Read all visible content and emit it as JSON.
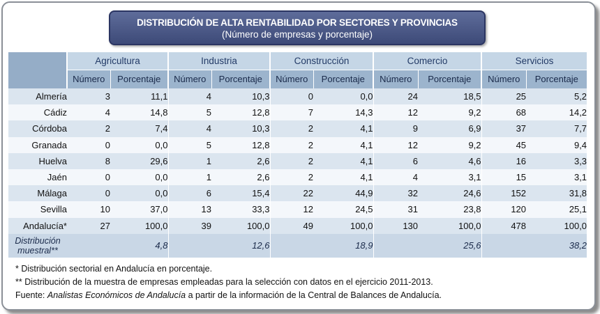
{
  "title": {
    "line1": "DISTRIBUCIÓN DE ALTA RENTABILIDAD POR SECTORES Y PROVINCIAS",
    "line2": "(Número de empresas y porcentaje)"
  },
  "columns": {
    "sectors": [
      "Agricultura",
      "Industria",
      "Construcción",
      "Comercio",
      "Servicios"
    ],
    "numero": "Número",
    "porcentaje": "Porcentaje"
  },
  "rows": [
    {
      "provincia": "Almería",
      "values": [
        "3",
        "11,1",
        "4",
        "10,3",
        "0",
        "0,0",
        "24",
        "18,5",
        "25",
        "5,2"
      ]
    },
    {
      "provincia": "Cádiz",
      "values": [
        "4",
        "14,8",
        "5",
        "12,8",
        "7",
        "14,3",
        "12",
        "9,2",
        "68",
        "14,2"
      ]
    },
    {
      "provincia": "Córdoba",
      "values": [
        "2",
        "7,4",
        "4",
        "10,3",
        "2",
        "4,1",
        "9",
        "6,9",
        "37",
        "7,7"
      ]
    },
    {
      "provincia": "Granada",
      "values": [
        "0",
        "0,0",
        "5",
        "12,8",
        "2",
        "4,1",
        "12",
        "9,2",
        "45",
        "9,4"
      ]
    },
    {
      "provincia": "Huelva",
      "values": [
        "8",
        "29,6",
        "1",
        "2,6",
        "2",
        "4,1",
        "6",
        "4,6",
        "16",
        "3,3"
      ]
    },
    {
      "provincia": "Jaén",
      "values": [
        "0",
        "0,0",
        "1",
        "2,6",
        "2",
        "4,1",
        "4",
        "3,1",
        "15",
        "3,1"
      ]
    },
    {
      "provincia": "Málaga",
      "values": [
        "0",
        "0,0",
        "6",
        "15,4",
        "22",
        "44,9",
        "32",
        "24,6",
        "152",
        "31,8"
      ]
    },
    {
      "provincia": "Sevilla",
      "values": [
        "10",
        "37,0",
        "13",
        "33,3",
        "12",
        "24,5",
        "31",
        "23,8",
        "120",
        "25,1"
      ]
    },
    {
      "provincia": "Andalucía*",
      "values": [
        "27",
        "100,0",
        "39",
        "100,0",
        "49",
        "100,0",
        "130",
        "100,0",
        "478",
        "100,0"
      ]
    }
  ],
  "distribucion": {
    "label_line1": "Distribución",
    "label_line2": "muestral**",
    "values": [
      "4,8",
      "12,6",
      "18,9",
      "25,6",
      "38,2"
    ]
  },
  "notes": {
    "note1": "* Distribución sectorial en Andalucía en porcentaje.",
    "note2": "** Distribución de la muestra de empresas empleadas para la selección con datos en el ejercicio 2011-2013.",
    "source_prefix": "Fuente: ",
    "source_italic": "Analistas Económicos de Andalucía",
    "source_suffix": " a partir de la información de la Central de Balances de Andalucía."
  }
}
